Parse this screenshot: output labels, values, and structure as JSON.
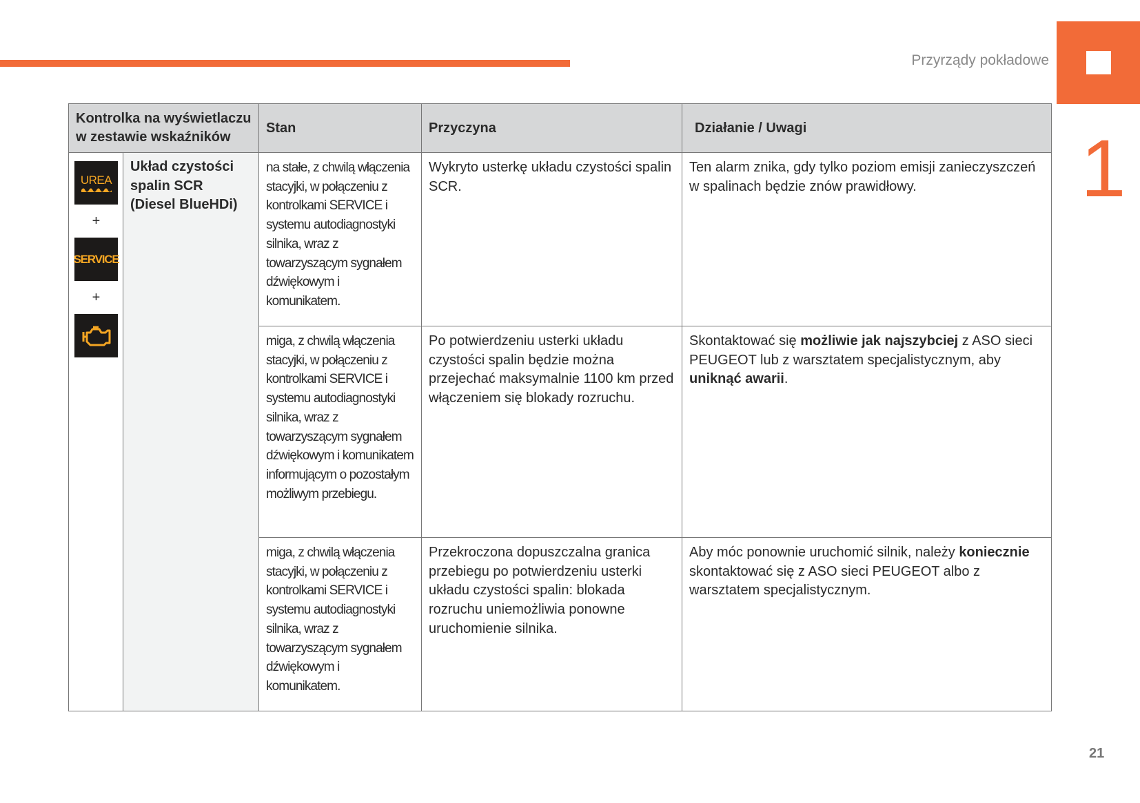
{
  "header": {
    "section_title": "Przyrządy pokładowe",
    "chapter_number": "1",
    "accent_color": "#f26b38"
  },
  "page_number": "21",
  "table": {
    "columns": [
      "Kontrolka na wyświetlaczu w zestawie wskaźników",
      "Stan",
      "Przyczyna",
      "Działanie / Uwagi"
    ],
    "indicator": {
      "icons": [
        {
          "name": "urea-icon",
          "label": "UREA"
        },
        {
          "name": "service-icon",
          "label": "SERVICE"
        },
        {
          "name": "engine-check-icon",
          "label": ""
        }
      ],
      "plus": "+",
      "system_name": "Układ czystości spalin SCR (Diesel BlueHDi)"
    },
    "rows": [
      {
        "stan": "na stałe, z chwilą włączenia stacyjki, w połączeniu z kontrolkami SERVICE i systemu autodiagnostyki silnika, wraz z towarzyszącym sygnałem dźwiękowym i komunikatem.",
        "przyczyna": "Wykryto usterkę układu czystości spalin SCR.",
        "dzialanie": [
          {
            "t": "Ten alarm znika, gdy tylko poziom emisji zanieczyszczeń w spalinach będzie znów prawidłowy.",
            "b": false
          }
        ]
      },
      {
        "stan": "miga, z chwilą włączenia stacyjki, w połączeniu z kontrolkami SERVICE i systemu autodiagnostyki silnika, wraz z towarzyszącym sygnałem dźwiękowym i komunikatem informującym o pozostałym możliwym przebiegu.",
        "przyczyna": "Po potwierdzeniu usterki układu czystości spalin będzie można przejechać maksymalnie 1100 km przed włączeniem się blokady rozruchu.",
        "dzialanie": [
          {
            "t": "Skontaktować się ",
            "b": false
          },
          {
            "t": "możliwie jak najszybciej",
            "b": true
          },
          {
            "t": " z ASO sieci PEUGEOT lub z warsztatem specjalistycznym, aby ",
            "b": false
          },
          {
            "t": "uniknąć awarii",
            "b": true
          },
          {
            "t": ".",
            "b": false
          }
        ]
      },
      {
        "stan": "miga, z chwilą włączenia stacyjki, w połączeniu z kontrolkami SERVICE i systemu autodiagnostyki silnika, wraz z towarzyszącym sygnałem dźwiękowym i komunikatem.",
        "przyczyna": "Przekroczona dopuszczalna granica przebiegu po potwierdzeniu usterki układu czystości spalin: blokada rozruchu uniemożliwia ponowne uruchomienie silnika.",
        "dzialanie": [
          {
            "t": "Aby móc ponownie uruchomić silnik, należy ",
            "b": false
          },
          {
            "t": "koniecznie",
            "b": true
          },
          {
            "t": " skontaktować się z ASO sieci PEUGEOT albo z warsztatem specjalistycznym.",
            "b": false
          }
        ]
      }
    ]
  }
}
